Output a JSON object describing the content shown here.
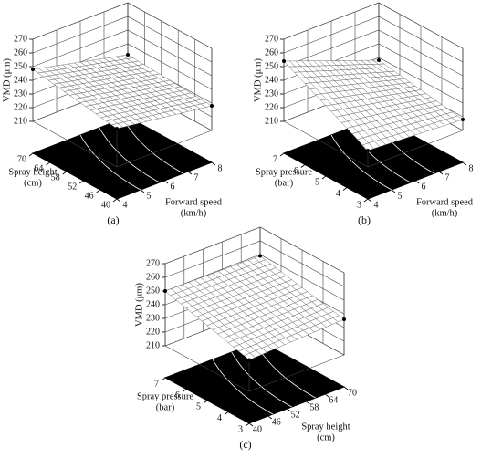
{
  "chart_data": [
    {
      "type": "surface3d",
      "panel_label": "(a)",
      "zlabel": "VMD (μm)",
      "zlim": [
        210,
        270
      ],
      "zticks": [
        210,
        220,
        230,
        240,
        250,
        260,
        270
      ],
      "xlabel": [
        "Forward speed",
        "(km/h)"
      ],
      "xlim": [
        4,
        8
      ],
      "xticks": [
        4,
        5,
        6,
        7,
        8
      ],
      "ylabel": [
        "Spray height",
        "(cm)"
      ],
      "ylim": [
        40,
        70
      ],
      "yticks": [
        40,
        46,
        52,
        58,
        64,
        70
      ],
      "z": [
        [
          238,
          228
        ],
        [
          248,
          232
        ]
      ]
    },
    {
      "type": "surface3d",
      "panel_label": "(b)",
      "zlabel": "VMD (μm)",
      "zlim": [
        210,
        270
      ],
      "zticks": [
        210,
        220,
        230,
        240,
        250,
        260,
        270
      ],
      "xlabel": [
        "Forward speed",
        "(km/h)"
      ],
      "xlim": [
        4,
        8
      ],
      "xticks": [
        4,
        5,
        6,
        7,
        8
      ],
      "ylabel": [
        "Spray pressure",
        "(bar)"
      ],
      "ylim": [
        3,
        7
      ],
      "yticks": [
        3,
        4,
        5,
        6,
        7
      ],
      "z": [
        [
          222,
          218
        ],
        [
          254,
          228
        ]
      ]
    },
    {
      "type": "surface3d",
      "panel_label": "(c)",
      "zlabel": "VMD (μm)",
      "zlim": [
        210,
        270
      ],
      "zticks": [
        210,
        220,
        230,
        240,
        250,
        260,
        270
      ],
      "xlabel": [
        "Spray height",
        "(cm)"
      ],
      "xlim": [
        40,
        70
      ],
      "xticks": [
        40,
        46,
        52,
        58,
        64,
        70
      ],
      "ylabel": [
        "Spray pressure",
        "(bar)"
      ],
      "ylim": [
        3,
        7
      ],
      "yticks": [
        3,
        4,
        5,
        6,
        7
      ],
      "z": [
        [
          233,
          236
        ],
        [
          250,
          249
        ]
      ]
    }
  ]
}
